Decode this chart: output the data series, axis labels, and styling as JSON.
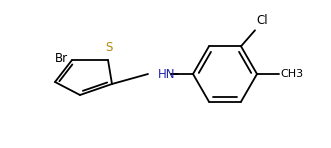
{
  "background_color": "#ffffff",
  "bond_color": "#000000",
  "label_color_default": "#000000",
  "label_color_N": "#2020aa",
  "label_color_S": "#b8860b",
  "label_Br": "Br",
  "label_S": "S",
  "label_HN": "HN",
  "label_Cl": "Cl",
  "label_CH3": "CH3",
  "figsize": [
    3.31,
    1.48
  ],
  "dpi": 100,
  "lw": 1.3
}
